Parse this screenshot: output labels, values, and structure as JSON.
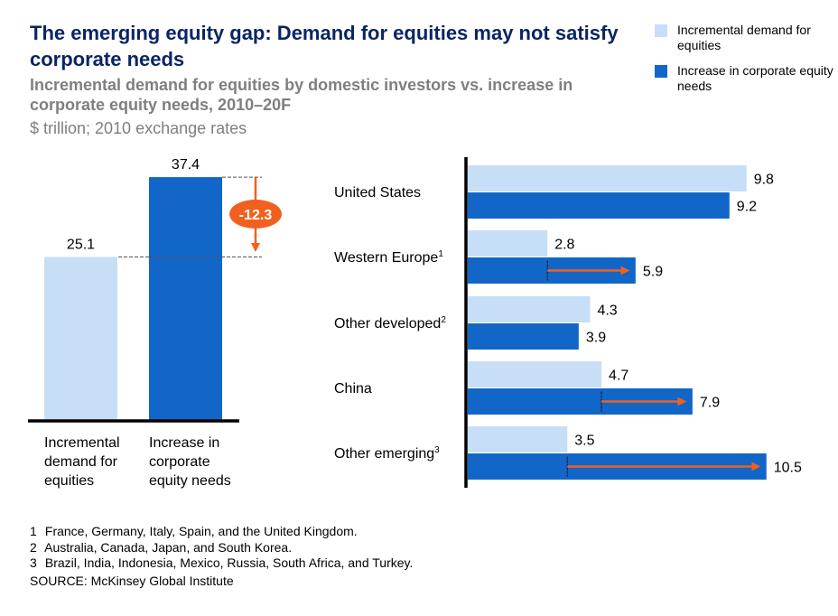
{
  "header": {
    "title": "The emerging equity gap: Demand for equities may not satisfy corporate needs",
    "subtitle": "Incremental demand for equities by domestic investors vs. increase in corporate equity needs, 2010–20F",
    "unit": "$ trillion; 2010 exchange rates"
  },
  "colors": {
    "demand": "#c6dff6",
    "needs": "#1266c8",
    "gap_arrow": "#f2601f",
    "title": "#0a2565",
    "subtitle": "#7f7f7f"
  },
  "legend": [
    {
      "key": "demand",
      "label": "Incremental demand for equities"
    },
    {
      "key": "needs",
      "label": "Increase in corporate equity needs"
    }
  ],
  "chart_data": [
    {
      "type": "bar",
      "orientation": "vertical",
      "title": "Total",
      "categories": [
        "Incremental demand for equities",
        "Increase in corporate equity needs"
      ],
      "values": [
        25.1,
        37.4
      ],
      "value_labels": [
        "25.1",
        "37.4"
      ],
      "gap": {
        "value": -12.3,
        "label": "-12.3"
      },
      "ylim": [
        0,
        37.4
      ],
      "grid": false
    },
    {
      "type": "bar",
      "orientation": "horizontal",
      "title": "By region",
      "categories": [
        "United States",
        "Western Europe",
        "Other developed",
        "China",
        "Other emerging"
      ],
      "category_superscripts": [
        "",
        "1",
        "2",
        "",
        "3"
      ],
      "series": [
        {
          "name": "Incremental demand for equities",
          "key": "demand",
          "values": [
            9.8,
            2.8,
            4.3,
            4.7,
            3.5
          ]
        },
        {
          "name": "Increase in corporate equity needs",
          "key": "needs",
          "values": [
            9.2,
            5.9,
            3.9,
            7.9,
            10.5
          ]
        }
      ],
      "gap_arrows": [
        false,
        true,
        false,
        true,
        true
      ],
      "xlim": [
        0,
        10.5
      ],
      "grid": false,
      "legend_position": "top-right"
    }
  ],
  "footnotes": [
    {
      "num": "1",
      "text": "France, Germany, Italy, Spain, and the United Kingdom."
    },
    {
      "num": "2",
      "text": "Australia, Canada, Japan, and South Korea."
    },
    {
      "num": "3",
      "text": "Brazil, India, Indonesia, Mexico, Russia, South Africa, and Turkey."
    }
  ],
  "source": "SOURCE: McKinsey Global Institute"
}
